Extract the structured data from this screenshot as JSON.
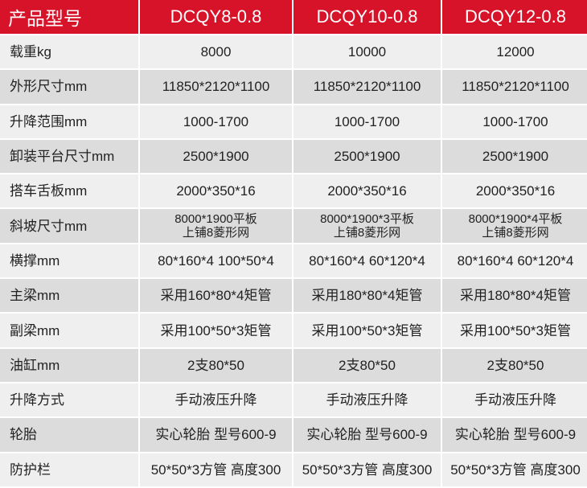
{
  "header": {
    "label": "产品型号",
    "models": [
      "DCQY8-0.8",
      "DCQY10-0.8",
      "DCQY12-0.8"
    ]
  },
  "colors": {
    "header_bg": "#d7132a",
    "row_light": "#efefef",
    "row_dark": "#dcdcdc"
  },
  "rows": [
    {
      "label": "载重kg",
      "values": [
        "8000",
        "10000",
        "12000"
      ]
    },
    {
      "label": "外形尺寸mm",
      "values": [
        "11850*2120*1100",
        "11850*2120*1100",
        "11850*2120*1100"
      ]
    },
    {
      "label": "升降范围mm",
      "values": [
        "1000-1700",
        "1000-1700",
        "1000-1700"
      ]
    },
    {
      "label": "卸装平台尺寸mm",
      "values": [
        "2500*1900",
        "2500*1900",
        "2500*1900"
      ]
    },
    {
      "label": "搭车舌板mm",
      "values": [
        "2000*350*16",
        "2000*350*16",
        "2000*350*16"
      ]
    },
    {
      "label": "斜坡尺寸mm",
      "values": [
        [
          "8000*1900平板",
          "上铺8菱形网"
        ],
        [
          "8000*1900*3平板",
          "上铺8菱形网"
        ],
        [
          "8000*1900*4平板",
          "上铺8菱形网"
        ]
      ]
    },
    {
      "label": "横撑mm",
      "values": [
        "80*160*4 100*50*4",
        "80*160*4 60*120*4",
        "80*160*4 60*120*4"
      ]
    },
    {
      "label": "主梁mm",
      "values": [
        "采用160*80*4矩管",
        "采用180*80*4矩管",
        "采用180*80*4矩管"
      ]
    },
    {
      "label": "副梁mm",
      "values": [
        "采用100*50*3矩管",
        "采用100*50*3矩管",
        "采用100*50*3矩管"
      ]
    },
    {
      "label": "油缸mm",
      "values": [
        "2支80*50",
        "2支80*50",
        "2支80*50"
      ]
    },
    {
      "label": "升降方式",
      "values": [
        "手动液压升降",
        "手动液压升降",
        "手动液压升降"
      ]
    },
    {
      "label": "轮胎",
      "values": [
        "实心轮胎 型号600-9",
        "实心轮胎 型号600-9",
        "实心轮胎 型号600-9"
      ]
    },
    {
      "label": "防护栏",
      "values": [
        "50*50*3方管 高度300",
        "50*50*3方管 高度300",
        "50*50*3方管 高度300"
      ]
    }
  ]
}
